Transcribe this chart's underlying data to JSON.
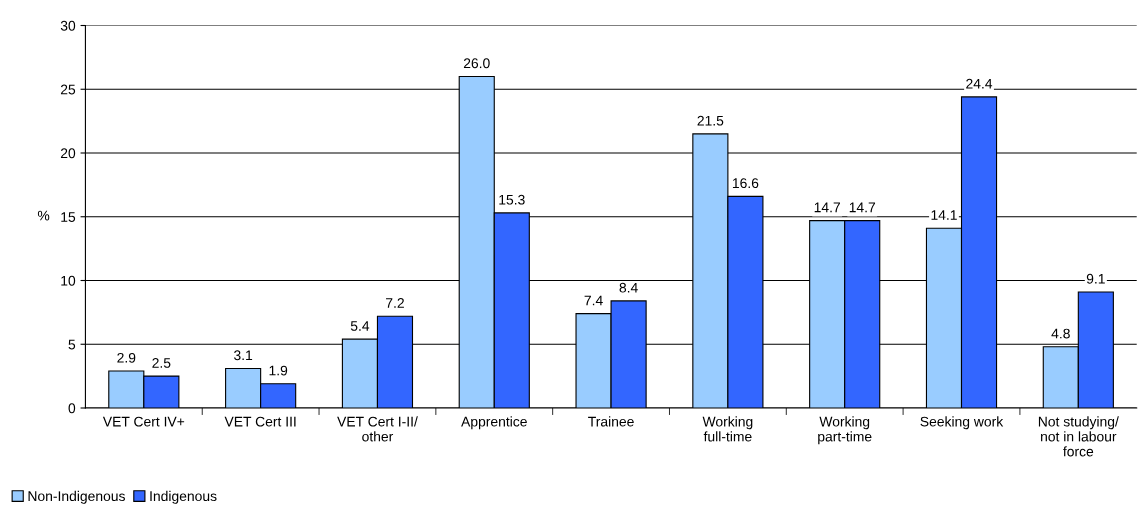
{
  "chart_data": {
    "type": "bar",
    "ylabel": "%",
    "categories": [
      "VET Cert IV+",
      "VET Cert III",
      "VET Cert I-II/\nother",
      "Apprentice",
      "Trainee",
      "Working\nfull-time",
      "Working\npart-time",
      "Seeking work",
      "Not studying/\nnot in labour\nforce"
    ],
    "series": [
      {
        "name": "Non-Indigenous",
        "color": "#99ccff",
        "values": [
          2.9,
          3.1,
          5.4,
          26.0,
          7.4,
          21.5,
          14.7,
          14.1,
          4.8
        ],
        "value_labels": [
          "2.9",
          "3.1",
          "5.4",
          "26.0",
          "7.4",
          "21.5",
          "14.7",
          "14.1",
          "4.8"
        ]
      },
      {
        "name": "Indigenous",
        "color": "#3366ff",
        "values": [
          2.5,
          1.9,
          7.2,
          15.3,
          8.4,
          16.6,
          14.7,
          24.4,
          9.1
        ],
        "value_labels": [
          "2.5",
          "1.9",
          "7.2",
          "15.3",
          "8.4",
          "16.6",
          "14.7",
          "24.4",
          "9.1"
        ]
      }
    ],
    "ylim": [
      0,
      30
    ],
    "yticks": [
      0,
      5,
      10,
      15,
      20,
      25,
      30
    ],
    "grid": "y",
    "legend": "bottom left"
  }
}
